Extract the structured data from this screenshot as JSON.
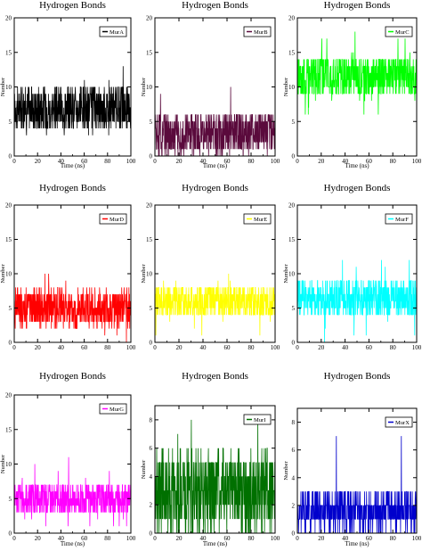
{
  "chart_data": [
    {
      "type": "line",
      "title": "Hydrogen Bonds",
      "xlabel": "Time (ns)",
      "ylabel": "Number",
      "legend": "MurA",
      "legend_placement": "top-right",
      "color": "#000000",
      "xlim": [
        0,
        100
      ],
      "ylim": [
        0,
        20
      ],
      "xticks": [
        0,
        20,
        40,
        60,
        80,
        100
      ],
      "yticks": [
        0,
        5,
        10,
        15,
        20
      ],
      "grid": false,
      "mean": 7,
      "spread": 2.2,
      "min": 3,
      "max": 13
    },
    {
      "type": "line",
      "title": "Hydrogen Bonds",
      "xlabel": "Time (ns)",
      "ylabel": "Number",
      "legend": "MurB",
      "legend_placement": "top-right",
      "color": "#5a0a3c",
      "xlim": [
        0,
        100
      ],
      "ylim": [
        0,
        20
      ],
      "xticks": [
        0,
        20,
        40,
        60,
        80,
        100
      ],
      "yticks": [
        0,
        5,
        10,
        15,
        20
      ],
      "grid": false,
      "mean": 3.3,
      "spread": 2.2,
      "min": 0,
      "max": 10
    },
    {
      "type": "line",
      "title": "Hydrogen Bonds",
      "xlabel": "Time (ns)",
      "ylabel": "Number",
      "legend": "MurC",
      "legend_placement": "top-right",
      "color": "#00ff00",
      "xlim": [
        0,
        100
      ],
      "ylim": [
        0,
        20
      ],
      "xticks": [
        0,
        20,
        40,
        60,
        80,
        100
      ],
      "yticks": [
        0,
        5,
        10,
        15,
        20
      ],
      "grid": false,
      "mean": 11.5,
      "spread": 2.2,
      "min": 3,
      "max": 18
    },
    {
      "type": "line",
      "title": "Hydrogen Bonds",
      "xlabel": "",
      "ylabel": "Number",
      "legend": "MurD",
      "legend_placement": "top-right",
      "color": "#ff0000",
      "xlim": [
        0,
        100
      ],
      "ylim": [
        0,
        20
      ],
      "xticks": [
        0,
        20,
        40,
        60,
        80,
        100
      ],
      "yticks": [
        0,
        5,
        10,
        15,
        20
      ],
      "grid": false,
      "mean": 5,
      "spread": 2,
      "min": 0,
      "max": 10
    },
    {
      "type": "line",
      "title": "Hydrogen Bonds",
      "xlabel": "",
      "ylabel": "Number",
      "legend": "MurE",
      "legend_placement": "top-right",
      "color": "#ffff00",
      "xlim": [
        0,
        100
      ],
      "ylim": [
        0,
        20
      ],
      "xticks": [
        0,
        20,
        40,
        60,
        80,
        100
      ],
      "yticks": [
        0,
        5,
        10,
        15,
        20
      ],
      "grid": false,
      "mean": 6,
      "spread": 1.8,
      "min": 0,
      "max": 12
    },
    {
      "type": "line",
      "title": "Hydrogen Bonds",
      "xlabel": "",
      "ylabel": "Number",
      "legend": "MurF",
      "legend_placement": "top-right",
      "color": "#00ffff",
      "xlim": [
        0,
        100
      ],
      "ylim": [
        0,
        20
      ],
      "xticks": [
        0,
        20,
        40,
        60,
        80,
        100
      ],
      "yticks": [
        0,
        5,
        10,
        15,
        20
      ],
      "grid": false,
      "mean": 6.5,
      "spread": 2,
      "min": 0,
      "max": 13
    },
    {
      "type": "line",
      "title": "Hydrogen Bonds",
      "xlabel": "Time (ns)",
      "ylabel": "Number",
      "legend": "MurG",
      "legend_placement": "top-right",
      "color": "#ff00ff",
      "xlim": [
        0,
        100
      ],
      "ylim": [
        0,
        20
      ],
      "xticks": [
        0,
        20,
        40,
        60,
        80,
        100
      ],
      "yticks": [
        0,
        5,
        10,
        15,
        20
      ],
      "grid": false,
      "mean": 5,
      "spread": 1.6,
      "min": 1,
      "max": 11
    },
    {
      "type": "line",
      "title": "Hydrogen Bonds",
      "xlabel": "Time (ns)",
      "ylabel": "Number",
      "legend": "MurI",
      "legend_placement": "top-right",
      "color": "#007000",
      "xlim": [
        0,
        100
      ],
      "ylim": [
        0,
        9
      ],
      "xticks": [
        0,
        20,
        40,
        60,
        80,
        100
      ],
      "yticks": [
        0,
        2,
        4,
        6,
        8
      ],
      "grid": false,
      "mean": 3,
      "spread": 2,
      "min": 0,
      "max": 9
    },
    {
      "type": "line",
      "title": "Hydrogen Bonds",
      "xlabel": "Time (ns)",
      "ylabel": "Number",
      "legend": "MurX",
      "legend_placement": "top-right",
      "color": "#0000cc",
      "xlim": [
        0,
        100
      ],
      "ylim": [
        0,
        9
      ],
      "xticks": [
        0,
        20,
        40,
        60,
        80,
        100
      ],
      "yticks": [
        0,
        2,
        4,
        6,
        8
      ],
      "grid": false,
      "mean": 1.6,
      "spread": 1,
      "min": 0,
      "max": 8
    }
  ]
}
